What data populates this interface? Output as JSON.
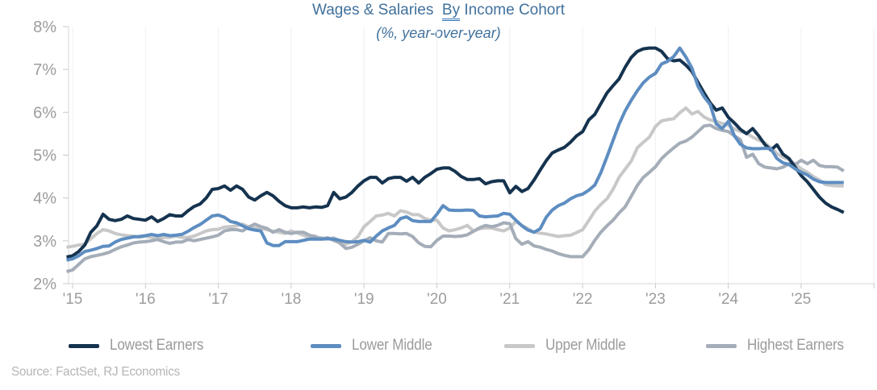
{
  "title": {
    "prefix": "Wages & Salaries  ",
    "underlined": "By",
    "suffix": " Income Cohort",
    "subtitle": "(%, year-over-year)"
  },
  "source_note": "Source: FactSet, RJ Economics",
  "colors": {
    "title_text": "#41719c",
    "misspell_underline": "#2e75b6",
    "axis_text": "#9c9c9c",
    "legend_text": "#9b9b9b",
    "source_text": "#b5b5b5",
    "axis_line": "#d6d6d6",
    "tick_mark": "#c9c9c9",
    "gridline": "#f0f0f0",
    "background": "#ffffff"
  },
  "chart_data": {
    "type": "line",
    "title": "Wages & Salaries By Income Cohort",
    "subtitle": "(%, year-over-year)",
    "frequency": "monthly",
    "x_start": "2014-12",
    "x_end": "2025-08",
    "x_tick_labels": [
      "'15",
      "'16",
      "'17",
      "'18",
      "'19",
      "'20",
      "'21",
      "'22",
      "'23",
      "'24",
      "'25"
    ],
    "y_tick_labels": [
      "2%",
      "3%",
      "4%",
      "5%",
      "6%",
      "7%",
      "8%"
    ],
    "ylim": [
      2,
      8
    ],
    "y_unit": "percent year-over-year",
    "grid": "vertical-only",
    "legend_position": "bottom",
    "draw_order": [
      2,
      3,
      0,
      1
    ],
    "series": [
      {
        "name": "Lowest Earners",
        "color": "#15334f",
        "values": [
          2.62,
          2.65,
          2.75,
          2.9,
          3.2,
          3.35,
          3.62,
          3.5,
          3.47,
          3.5,
          3.58,
          3.52,
          3.5,
          3.48,
          3.56,
          3.45,
          3.52,
          3.61,
          3.58,
          3.58,
          3.7,
          3.8,
          3.86,
          4.0,
          4.2,
          4.22,
          4.28,
          4.18,
          4.28,
          4.2,
          4.02,
          3.95,
          4.05,
          4.13,
          4.05,
          3.92,
          3.82,
          3.77,
          3.77,
          3.79,
          3.77,
          3.79,
          3.78,
          3.82,
          4.13,
          3.98,
          4.02,
          4.13,
          4.28,
          4.4,
          4.48,
          4.48,
          4.35,
          4.45,
          4.48,
          4.48,
          4.39,
          4.48,
          4.35,
          4.48,
          4.57,
          4.67,
          4.7,
          4.7,
          4.62,
          4.5,
          4.43,
          4.43,
          4.45,
          4.33,
          4.38,
          4.4,
          4.4,
          4.12,
          4.27,
          4.15,
          4.22,
          4.42,
          4.65,
          4.87,
          5.05,
          5.12,
          5.18,
          5.3,
          5.45,
          5.55,
          5.82,
          5.95,
          6.2,
          6.45,
          6.62,
          6.78,
          7.05,
          7.28,
          7.42,
          7.48,
          7.5,
          7.5,
          7.42,
          7.25,
          7.2,
          7.22,
          7.1,
          6.95,
          6.7,
          6.45,
          6.22,
          6.05,
          6.1,
          5.88,
          5.75,
          5.6,
          5.5,
          5.62,
          5.45,
          5.25,
          5.12,
          5.24,
          5.02,
          4.92,
          4.72,
          4.52,
          4.38,
          4.2,
          4.02,
          3.88,
          3.79,
          3.73,
          3.66
        ]
      },
      {
        "name": "Lower Middle",
        "color": "#5d8dc1",
        "values": [
          2.55,
          2.58,
          2.65,
          2.75,
          2.78,
          2.82,
          2.87,
          2.88,
          2.97,
          3.03,
          3.06,
          3.09,
          3.1,
          3.12,
          3.15,
          3.12,
          3.15,
          3.12,
          3.13,
          3.15,
          3.22,
          3.31,
          3.38,
          3.48,
          3.58,
          3.6,
          3.55,
          3.45,
          3.42,
          3.35,
          3.28,
          3.25,
          3.23,
          2.95,
          2.89,
          2.89,
          2.98,
          2.98,
          2.98,
          3.01,
          3.04,
          3.04,
          3.04,
          3.05,
          3.04,
          3.01,
          2.98,
          2.97,
          2.98,
          3.01,
          2.97,
          3.11,
          3.23,
          3.3,
          3.36,
          3.52,
          3.56,
          3.47,
          3.45,
          3.45,
          3.45,
          3.62,
          3.82,
          3.72,
          3.71,
          3.71,
          3.72,
          3.71,
          3.58,
          3.56,
          3.57,
          3.58,
          3.64,
          3.62,
          3.48,
          3.35,
          3.25,
          3.2,
          3.28,
          3.55,
          3.72,
          3.82,
          3.88,
          3.98,
          4.05,
          4.09,
          4.18,
          4.3,
          4.59,
          4.96,
          5.34,
          5.72,
          6.03,
          6.28,
          6.5,
          6.69,
          6.82,
          6.91,
          7.13,
          7.19,
          7.3,
          7.5,
          7.29,
          7.03,
          6.61,
          6.36,
          6.18,
          5.73,
          5.62,
          5.79,
          5.45,
          5.25,
          5.17,
          5.15,
          5.15,
          5.16,
          5.15,
          4.92,
          4.82,
          4.78,
          4.68,
          4.6,
          4.54,
          4.44,
          4.38,
          4.36,
          4.36,
          4.36,
          4.36
        ]
      },
      {
        "name": "Upper Middle",
        "color": "#c8c8c8",
        "values": [
          2.85,
          2.87,
          2.9,
          2.92,
          3.05,
          3.17,
          3.26,
          3.23,
          3.17,
          3.14,
          3.12,
          3.11,
          3.08,
          3.11,
          3.08,
          3.05,
          3.08,
          3.08,
          3.11,
          3.08,
          3.08,
          3.11,
          3.17,
          3.23,
          3.26,
          3.27,
          3.32,
          3.33,
          3.35,
          3.39,
          3.32,
          3.3,
          3.29,
          3.26,
          3.22,
          3.2,
          3.17,
          3.23,
          3.18,
          3.13,
          3.07,
          3.07,
          3.07,
          3.04,
          3.07,
          3.0,
          2.92,
          2.98,
          3.1,
          3.33,
          3.45,
          3.58,
          3.6,
          3.64,
          3.58,
          3.7,
          3.67,
          3.61,
          3.61,
          3.52,
          3.48,
          3.48,
          3.3,
          3.23,
          3.26,
          3.3,
          3.36,
          3.23,
          3.28,
          3.3,
          3.3,
          3.26,
          3.23,
          3.3,
          3.45,
          3.36,
          3.28,
          3.2,
          3.18,
          3.16,
          3.13,
          3.1,
          3.12,
          3.13,
          3.19,
          3.26,
          3.47,
          3.69,
          3.85,
          3.98,
          4.2,
          4.48,
          4.67,
          4.86,
          5.17,
          5.3,
          5.42,
          5.67,
          5.8,
          5.83,
          5.85,
          5.99,
          6.1,
          5.96,
          6.02,
          5.89,
          5.82,
          5.79,
          5.74,
          5.7,
          5.61,
          5.55,
          5.51,
          5.42,
          5.35,
          5.29,
          5.17,
          5.04,
          4.95,
          4.89,
          4.79,
          4.68,
          4.6,
          4.5,
          4.42,
          4.31,
          4.29,
          4.28,
          4.28
        ]
      },
      {
        "name": "Highest Earners",
        "color": "#a4adb8",
        "values": [
          2.28,
          2.32,
          2.45,
          2.58,
          2.63,
          2.66,
          2.69,
          2.73,
          2.8,
          2.86,
          2.9,
          2.95,
          2.97,
          2.98,
          3.0,
          3.03,
          2.98,
          2.94,
          2.97,
          2.97,
          3.03,
          3.0,
          3.03,
          3.06,
          3.09,
          3.13,
          3.23,
          3.26,
          3.26,
          3.23,
          3.32,
          3.39,
          3.33,
          3.29,
          3.2,
          3.26,
          3.2,
          3.17,
          3.2,
          3.2,
          3.13,
          3.1,
          3.04,
          3.07,
          3.01,
          2.95,
          2.82,
          2.85,
          2.92,
          3.0,
          3.07,
          3.0,
          2.97,
          3.17,
          3.17,
          3.16,
          3.17,
          3.1,
          2.95,
          2.87,
          2.86,
          3.01,
          3.11,
          3.11,
          3.1,
          3.11,
          3.14,
          3.22,
          3.3,
          3.36,
          3.33,
          3.36,
          3.42,
          3.4,
          3.05,
          2.92,
          2.98,
          2.88,
          2.85,
          2.8,
          2.76,
          2.7,
          2.66,
          2.63,
          2.63,
          2.63,
          2.79,
          3.01,
          3.2,
          3.35,
          3.48,
          3.65,
          3.79,
          4.04,
          4.29,
          4.48,
          4.6,
          4.73,
          4.92,
          5.05,
          5.17,
          5.28,
          5.33,
          5.42,
          5.55,
          5.68,
          5.7,
          5.62,
          5.58,
          5.55,
          5.45,
          5.36,
          4.95,
          5.02,
          4.8,
          4.72,
          4.7,
          4.68,
          4.72,
          4.8,
          4.78,
          4.88,
          4.8,
          4.88,
          4.76,
          4.73,
          4.73,
          4.72,
          4.63
        ]
      }
    ]
  }
}
